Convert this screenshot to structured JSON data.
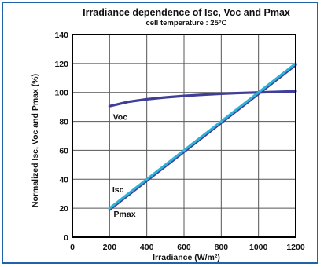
{
  "chart_data": {
    "type": "line",
    "title": "Irradiance dependence of Isc, Voc and Pmax",
    "subtitle": "cell temperature : 25°C",
    "xlabel": "Irradiance (W/m²)",
    "ylabel": "Normalized Isc, Voc and Pmax (%)",
    "xlim": [
      0,
      1200
    ],
    "ylim": [
      0,
      140
    ],
    "xticks": [
      0,
      200,
      400,
      600,
      800,
      1000,
      1200
    ],
    "yticks": [
      0,
      20,
      40,
      60,
      80,
      100,
      120,
      140
    ],
    "grid": true,
    "series": [
      {
        "name": "Voc",
        "color": "#3f3f9a",
        "x": [
          200,
          300,
          400,
          500,
          600,
          700,
          800,
          900,
          1000,
          1100,
          1200
        ],
        "y": [
          90.5,
          93.5,
          95.3,
          96.6,
          97.6,
          98.4,
          99.1,
          99.6,
          100,
          100.4,
          100.8
        ]
      },
      {
        "name": "Isc",
        "color": "#2eb3d6",
        "x": [
          200,
          1200
        ],
        "y": [
          20,
          120
        ]
      },
      {
        "name": "Pmax",
        "color": "#3f3f9a",
        "x": [
          200,
          1200
        ],
        "y": [
          19,
          119
        ]
      }
    ],
    "annotations": [
      {
        "text": "Voc",
        "x": 218,
        "y": 81
      },
      {
        "text": "Isc",
        "x": 215,
        "y": 31
      },
      {
        "text": "Pmax",
        "x": 222,
        "y": 14
      }
    ]
  }
}
